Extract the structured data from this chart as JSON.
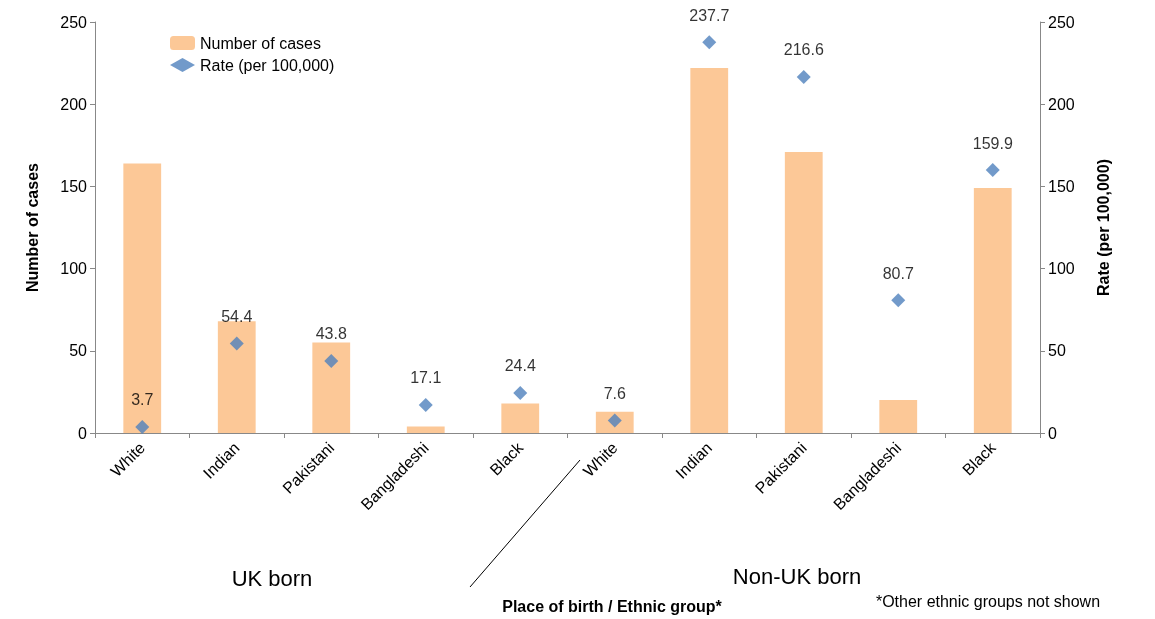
{
  "chart_data": {
    "type": "bar",
    "ylabel": "Number of cases",
    "y2label": "Rate (per 100,000)",
    "categories": [
      "White",
      "Indian",
      "Pakistani",
      "Bangladeshi",
      "Black",
      "White",
      "Indian",
      "Pakistani",
      "Bangladeshi",
      "Black"
    ],
    "series": [
      {
        "name": "Number of cases",
        "color": "#fcc897",
        "values": [
          164,
          68,
          55,
          4,
          18,
          13,
          222,
          171,
          20,
          149
        ]
      },
      {
        "name": "Rate (per 100,000)",
        "type": "scatter",
        "axis": "y2",
        "color": "#4f81bd",
        "marker": "diamond",
        "values": [
          3.7,
          54.4,
          43.8,
          17.1,
          24.4,
          7.6,
          237.7,
          216.6,
          80.7,
          159.9
        ],
        "value_labels": [
          "3.7",
          "54.4",
          "43.8",
          "17.1",
          "24.4",
          "7.6",
          "237.7",
          "216.6",
          "80.7",
          "159.9"
        ]
      }
    ],
    "ylim": [
      0,
      250
    ],
    "yticks": [
      0,
      50,
      100,
      150,
      200,
      250
    ],
    "y2lim": [
      0,
      250
    ],
    "y2ticks": [
      0,
      50,
      100,
      150,
      200,
      250
    ],
    "grid": false,
    "legend": "top left",
    "annotations": [
      "UK born",
      "Non-UK born",
      "Place of birth / Ethnic group*",
      "*Other ethnic groups not shown"
    ]
  }
}
